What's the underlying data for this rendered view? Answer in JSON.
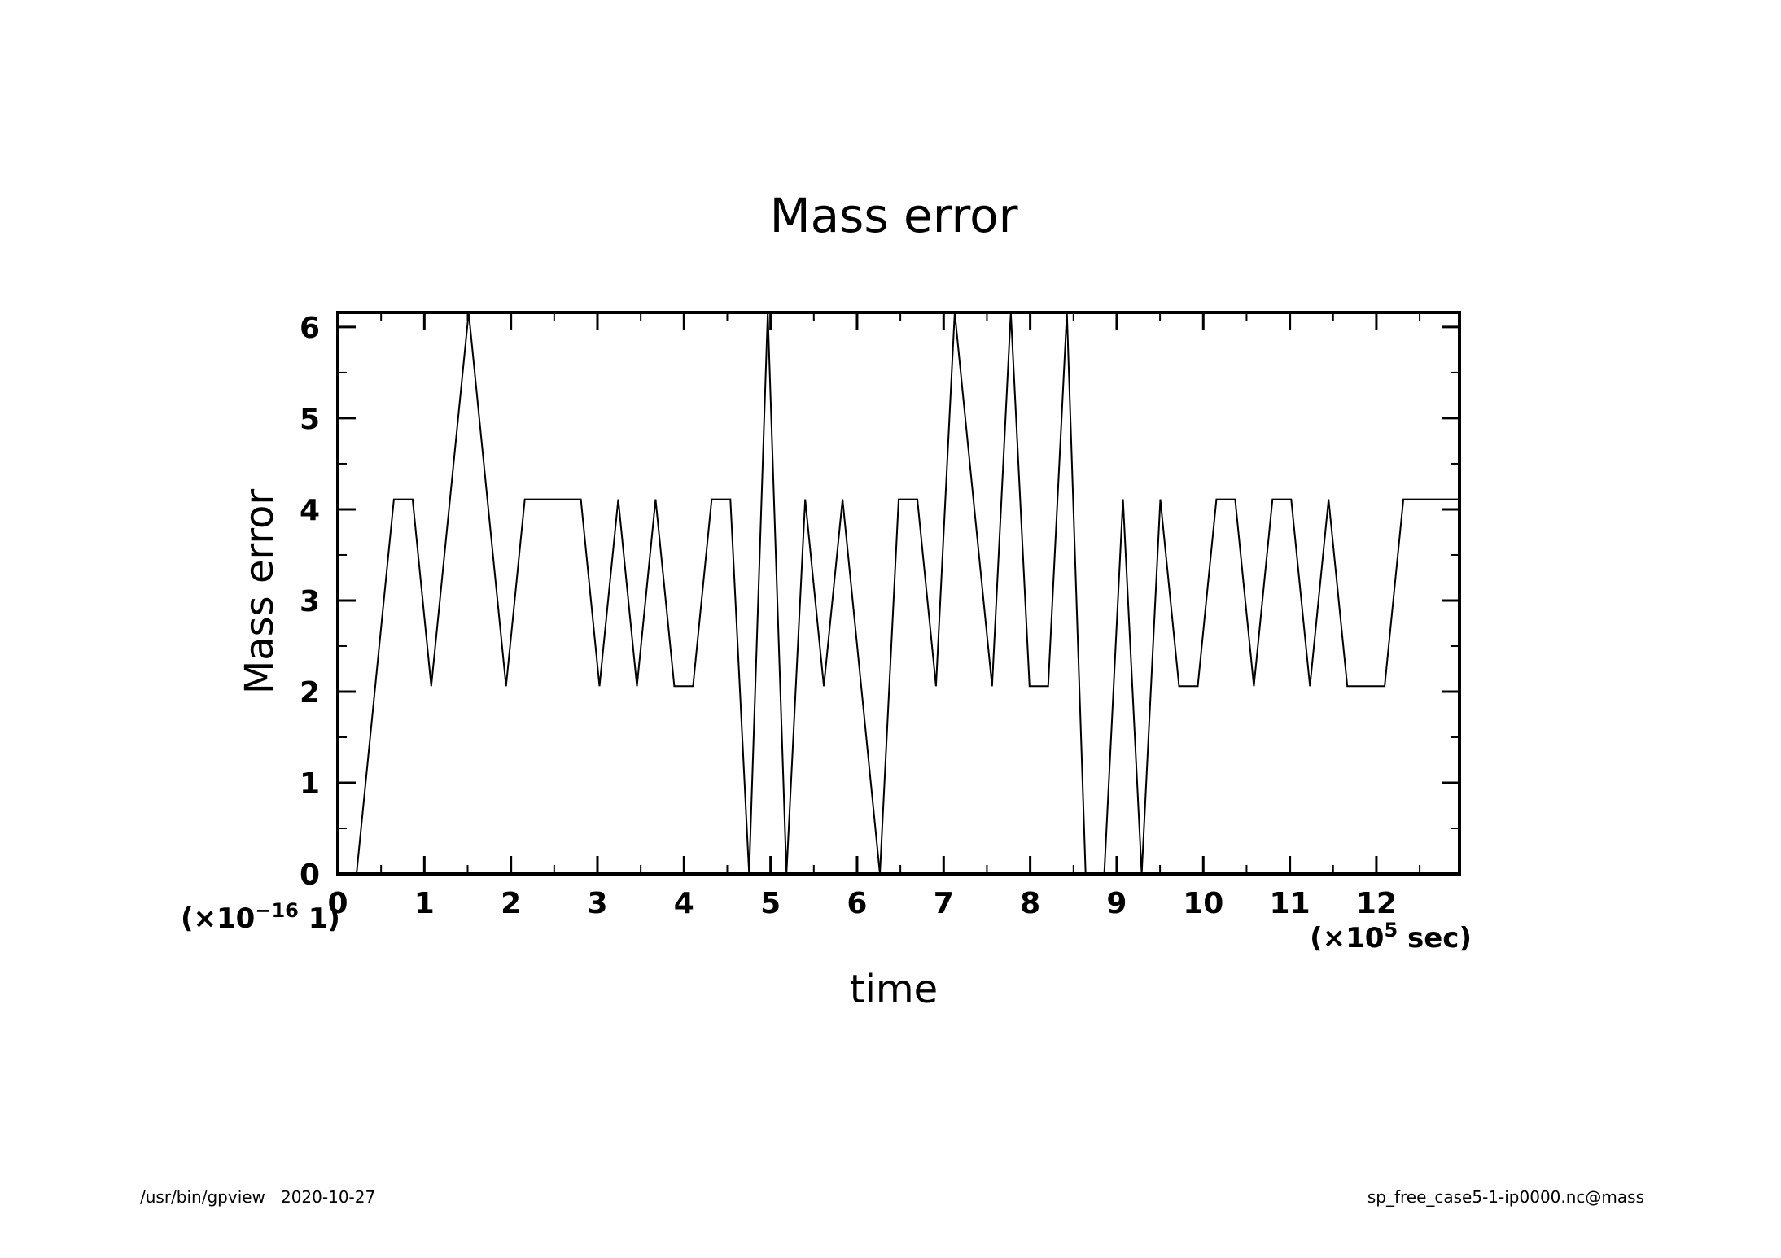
{
  "chart_data": {
    "type": "line",
    "title": "Mass error",
    "xlabel": "time",
    "ylabel": "Mass error",
    "x_scale_note": {
      "prefix": "(×10",
      "exp": "5",
      "suffix": " sec)"
    },
    "y_scale_note": {
      "prefix": "(×10",
      "exp": "−16",
      "suffix": " 1)"
    },
    "xlim": [
      0,
      12.96
    ],
    "ylim": [
      0,
      6.16
    ],
    "x_major_ticks": [
      0,
      1,
      2,
      3,
      4,
      5,
      6,
      7,
      8,
      9,
      10,
      11,
      12
    ],
    "x_tick_labels": [
      "0",
      "1",
      "2",
      "3",
      "4",
      "5",
      "6",
      "7",
      "8",
      "9",
      "10",
      "11",
      "12"
    ],
    "y_major_ticks": [
      0,
      1,
      2,
      3,
      4,
      5,
      6
    ],
    "y_tick_labels": [
      "0",
      "1",
      "2",
      "3",
      "4",
      "5",
      "6"
    ],
    "grid": false,
    "line_color": "#000000",
    "series": [
      {
        "x": [
          0,
          0.216,
          0.648,
          0.864,
          1.08,
          1.512,
          1.944,
          2.16,
          2.592,
          2.808,
          3.024,
          3.24,
          3.456,
          3.672,
          3.888,
          4.104,
          4.32,
          4.536,
          4.752,
          4.968,
          5.184,
          5.4,
          5.616,
          5.832,
          6.264,
          6.48,
          6.696,
          6.912,
          7.128,
          7.56,
          7.776,
          7.992,
          8.208,
          8.424,
          8.64,
          8.856,
          9.072,
          9.288,
          9.504,
          9.72,
          9.936,
          10.152,
          10.368,
          10.584,
          10.8,
          11.016,
          11.232,
          11.448,
          11.664,
          12.096,
          12.312,
          12.96
        ],
        "y": [
          0,
          0,
          4.11,
          4.11,
          2.06,
          6.16,
          2.06,
          4.11,
          4.11,
          4.11,
          2.06,
          4.11,
          2.06,
          4.11,
          2.06,
          2.06,
          4.11,
          4.11,
          0,
          6.16,
          0,
          4.11,
          2.06,
          4.11,
          0,
          4.11,
          4.11,
          2.06,
          6.16,
          2.06,
          6.16,
          2.06,
          2.06,
          6.16,
          0,
          0,
          4.11,
          0,
          4.11,
          2.06,
          2.06,
          4.11,
          4.11,
          2.06,
          4.11,
          4.11,
          2.06,
          4.11,
          2.06,
          2.06,
          4.11,
          4.11
        ]
      }
    ]
  },
  "footer": {
    "left": "/usr/bin/gpview   2020-10-27",
    "right": "sp_free_case5-1-ip0000.nc@mass"
  }
}
